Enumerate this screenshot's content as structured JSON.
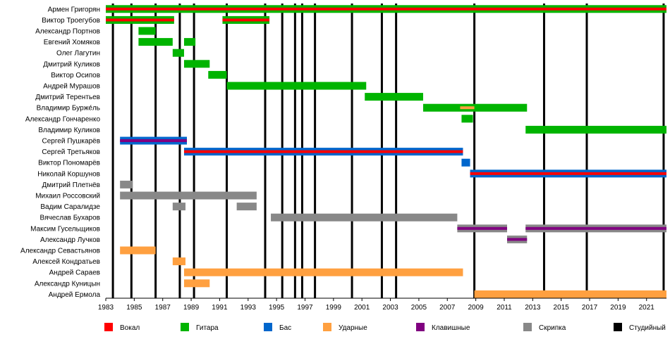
{
  "chart_data": {
    "type": "timeline",
    "x_range": [
      1983,
      2022.4
    ],
    "x_ticks": [
      "1983",
      "1985",
      "1987",
      "1989",
      "1991",
      "1993",
      "1995",
      "1997",
      "1999",
      "2001",
      "2003",
      "2005",
      "2007",
      "2009",
      "2011",
      "2013",
      "2015",
      "2017",
      "2019",
      "2021"
    ],
    "studio_years": [
      1983.5,
      1984.8,
      1986.5,
      1988.2,
      1989.2,
      1991.5,
      1994.2,
      1995.4,
      1996.3,
      1996.8,
      1997.7,
      2000.3,
      2002.4,
      2003.4,
      2008.9,
      2013.8,
      2016.8,
      2022.2
    ],
    "legend": [
      {
        "role": "vocal",
        "label": "Вокал",
        "color": "#ff0000"
      },
      {
        "role": "guitar",
        "label": "Гитара",
        "color": "#00b400"
      },
      {
        "role": "bass",
        "label": "Бас",
        "color": "#0066cc"
      },
      {
        "role": "drums",
        "label": "Ударные",
        "color": "#ffa040"
      },
      {
        "role": "keys",
        "label": "Клавишные",
        "color": "#800080"
      },
      {
        "role": "violin",
        "label": "Скрипка",
        "color": "#888888"
      },
      {
        "role": "studio",
        "label": "Студийный",
        "color": "#000000"
      }
    ],
    "members": [
      {
        "name": "Армен Григорян",
        "bars": [
          {
            "start": 1983,
            "end": 2022.4,
            "role": "guitar",
            "stripe": "vocal"
          }
        ]
      },
      {
        "name": "Виктор Троегубов",
        "bars": [
          {
            "start": 1983,
            "end": 1987.8,
            "role": "guitar",
            "stripe": "vocal"
          },
          {
            "start": 1991.2,
            "end": 1994.5,
            "role": "guitar",
            "stripe": "vocal"
          }
        ]
      },
      {
        "name": "Александр Портнов",
        "bars": [
          {
            "start": 1985.3,
            "end": 1986.5,
            "role": "guitar"
          }
        ]
      },
      {
        "name": "Евгений Хомяков",
        "bars": [
          {
            "start": 1985.3,
            "end": 1987.7,
            "role": "guitar"
          },
          {
            "start": 1988.5,
            "end": 1989.3,
            "role": "guitar"
          }
        ]
      },
      {
        "name": "Олег Лагутин",
        "bars": [
          {
            "start": 1987.7,
            "end": 1988.5,
            "role": "guitar"
          }
        ]
      },
      {
        "name": "Дмитрий Куликов",
        "bars": [
          {
            "start": 1988.5,
            "end": 1990.3,
            "role": "guitar"
          }
        ]
      },
      {
        "name": "Виктор Осипов",
        "bars": [
          {
            "start": 1990.2,
            "end": 1991.5,
            "role": "guitar"
          }
        ]
      },
      {
        "name": "Андрей Мурашов",
        "bars": [
          {
            "start": 1991.5,
            "end": 2001.3,
            "role": "guitar"
          }
        ]
      },
      {
        "name": "Дмитрий Терентьев",
        "bars": [
          {
            "start": 2001.2,
            "end": 2005.3,
            "role": "guitar"
          }
        ]
      },
      {
        "name": "Владимир Бурже́ль",
        "bars": [
          {
            "start": 2005.3,
            "end": 2012.6,
            "role": "guitar"
          },
          {
            "start": 2007.9,
            "end": 2008.9,
            "role": "drums",
            "thin": true
          }
        ]
      },
      {
        "name": "Александр Гончаренко",
        "bars": [
          {
            "start": 2008.0,
            "end": 2008.8,
            "role": "guitar"
          }
        ]
      },
      {
        "name": "Владимир Куликов",
        "bars": [
          {
            "start": 2012.5,
            "end": 2022.4,
            "role": "guitar"
          }
        ]
      },
      {
        "name": "Сергей Пушкарёв",
        "bars": [
          {
            "start": 1984.0,
            "end": 1988.7,
            "role": "bass",
            "stripe": "keys"
          }
        ]
      },
      {
        "name": "Сергей Третьяков",
        "bars": [
          {
            "start": 1988.5,
            "end": 2008.1,
            "role": "bass",
            "stripe": "vocal"
          }
        ]
      },
      {
        "name": "Виктор Пономарёв",
        "bars": [
          {
            "start": 2008.0,
            "end": 2008.6,
            "role": "bass"
          }
        ]
      },
      {
        "name": "Николай Коршунов",
        "bars": [
          {
            "start": 2008.6,
            "end": 2022.4,
            "role": "bass",
            "stripe": "vocal"
          }
        ]
      },
      {
        "name": "Дмитрий Плетнёв",
        "bars": [
          {
            "start": 1984.0,
            "end": 1984.9,
            "role": "violin"
          }
        ]
      },
      {
        "name": "Михаил Россовский",
        "bars": [
          {
            "start": 1984.0,
            "end": 1993.6,
            "role": "violin"
          }
        ]
      },
      {
        "name": "Вадим Саралидзе",
        "bars": [
          {
            "start": 1987.7,
            "end": 1988.6,
            "role": "violin"
          },
          {
            "start": 1992.2,
            "end": 1993.6,
            "role": "violin"
          }
        ]
      },
      {
        "name": "Вячеслав Бухаров",
        "bars": [
          {
            "start": 1994.6,
            "end": 2007.7,
            "role": "violin"
          }
        ]
      },
      {
        "name": "Максим Гусельщиков",
        "bars": [
          {
            "start": 2007.7,
            "end": 2011.2,
            "role": "violin",
            "stripe": "keys"
          },
          {
            "start": 2012.5,
            "end": 2022.4,
            "role": "violin",
            "stripe": "keys"
          }
        ]
      },
      {
        "name": "Александр Лучков",
        "bars": [
          {
            "start": 2011.2,
            "end": 2012.6,
            "role": "violin",
            "stripe": "keys"
          }
        ]
      },
      {
        "name": "Александр Севастьянов",
        "bars": [
          {
            "start": 1984.0,
            "end": 1986.5,
            "role": "drums"
          }
        ]
      },
      {
        "name": "Алексей Кондратьев",
        "bars": [
          {
            "start": 1987.7,
            "end": 1988.6,
            "role": "drums"
          }
        ]
      },
      {
        "name": "Андрей Сараев",
        "bars": [
          {
            "start": 1988.5,
            "end": 2008.1,
            "role": "drums"
          }
        ]
      },
      {
        "name": "Александр Куницын",
        "bars": [
          {
            "start": 1988.5,
            "end": 1990.3,
            "role": "drums"
          }
        ]
      },
      {
        "name": "Андрей Ермола",
        "bars": [
          {
            "start": 2008.9,
            "end": 2022.4,
            "role": "drums"
          }
        ]
      }
    ]
  }
}
